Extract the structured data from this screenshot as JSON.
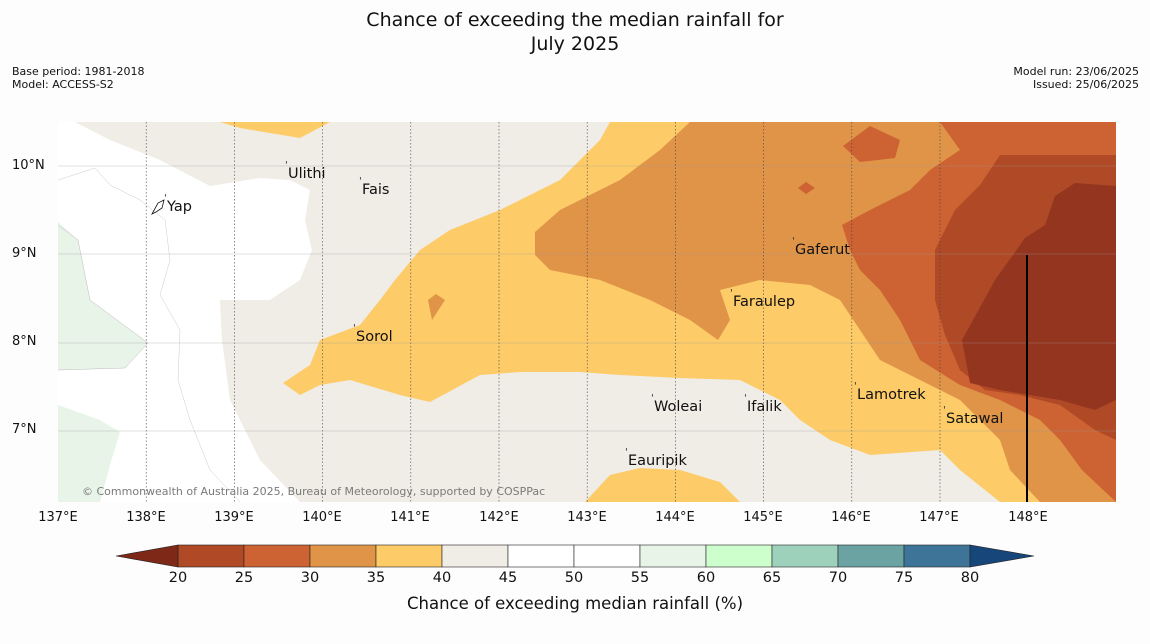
{
  "title": {
    "line1": "Chance of exceeding the median rainfall for",
    "line2": "July 2025"
  },
  "meta": {
    "base_period": "Base period: 1981-2018",
    "model": "Model: ACCESS-S2",
    "model_run": "Model run: 23/06/2025",
    "issued": "Issued: 25/06/2025"
  },
  "map": {
    "lon_range": [
      137,
      148.96
    ],
    "lat_range": [
      6.2,
      10.5
    ],
    "lon_labels": [
      "137°E",
      "138°E",
      "139°E",
      "140°E",
      "141°E",
      "142°E",
      "143°E",
      "144°E",
      "145°E",
      "146°E",
      "147°E",
      "148°E"
    ],
    "lat_labels": [
      "10°N",
      "9°N",
      "8°N",
      "7°N"
    ],
    "places": [
      {
        "name": "Yap"
      },
      {
        "name": "Ulithi"
      },
      {
        "name": "Fais"
      },
      {
        "name": "Gaferut"
      },
      {
        "name": "Faraulep"
      },
      {
        "name": "Sorol"
      },
      {
        "name": "Woleai"
      },
      {
        "name": "Ifalik"
      },
      {
        "name": "Lamotrek"
      },
      {
        "name": "Satawal"
      },
      {
        "name": "Eauripik"
      }
    ],
    "copyright": "© Commonwealth of Australia 2025, Bureau of Meteorology, supported by COSPPac"
  },
  "colorbar": {
    "label": "Chance of exceeding median rainfall (%)",
    "ticks": [
      "20",
      "25",
      "30",
      "35",
      "40",
      "45",
      "50",
      "55",
      "60",
      "65",
      "70",
      "75",
      "80"
    ],
    "colors": {
      "below20": "#7e2818",
      "20-25": "#b04a26",
      "25-30": "#cd6232",
      "30-35": "#e09448",
      "35-40": "#fdcb67",
      "40-45": "#f0ece6",
      "45-50": "#ffffff",
      "50-55": "#ffffff",
      "55-60": "#e9f4e8",
      "60-65": "#ccffcc",
      "65-70": "#9dd1bb",
      "70-75": "#6ba3a3",
      "75-80": "#3f7499",
      "above80": "#16467a",
      "deep": "#93351f"
    }
  }
}
